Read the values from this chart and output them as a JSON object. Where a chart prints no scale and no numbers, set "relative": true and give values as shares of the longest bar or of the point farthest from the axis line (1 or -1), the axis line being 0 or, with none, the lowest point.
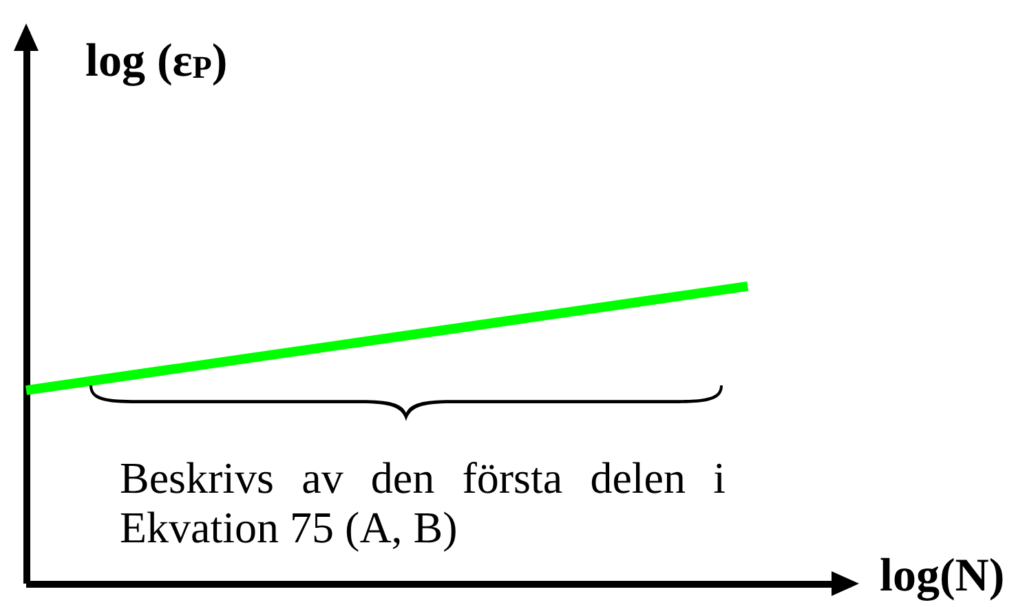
{
  "chart_data": {
    "type": "line",
    "xlabel": "log(N)",
    "ylabel": "log (ε$_{P}$)",
    "categories": [
      null,
      null,
      null,
      null,
      null,
      null,
      null,
      null,
      null
    ],
    "values": [
      0.65,
      0.7,
      0.75,
      0.8,
      0.85,
      0.9,
      0.95,
      1,
      null
    ],
    "color": "#00ff00",
    "relative": true,
    "marker": "none",
    "line_style": "solid",
    "annotations": [
      "Beskrivs av den första delen i Ekvation 75 (A, B)"
    ]
  }
}
